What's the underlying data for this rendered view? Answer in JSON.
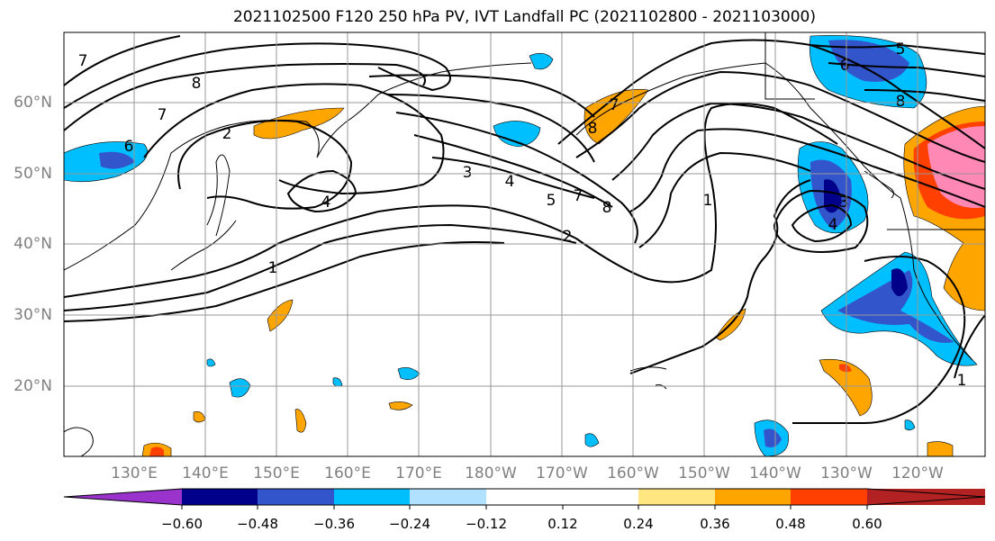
{
  "title": "2021102500 F120 250 hPa PV, IVT Landfall PC (2021102800 - 2021103000)",
  "lat_labels": [
    "60°N",
    "50°N",
    "40°N",
    "30°N",
    "20°N"
  ],
  "lon_labels": [
    "130°E",
    "140°E",
    "150°E",
    "160°E",
    "170°E",
    "180°W",
    "170°W",
    "160°W",
    "150°W",
    "140°W",
    "130°W",
    "120°W"
  ],
  "colorbar": {
    "colors": [
      "#9933cc",
      "#00008b",
      "#3355cc",
      "#00bfff",
      "#b0e2ff",
      "#ffffff",
      "#ffffff",
      "#ffe680",
      "#ffa500",
      "#ff4000",
      "#b22222",
      "#ff88b4"
    ],
    "ticks": [
      "−0.60",
      "−0.48",
      "−0.36",
      "−0.24",
      "−0.12",
      "0.12",
      "0.24",
      "0.36",
      "0.48",
      "0.60"
    ]
  },
  "contour_labels": [
    "7",
    "8",
    "7",
    "6",
    "2",
    "4",
    "1",
    "3",
    "4",
    "5",
    "7",
    "8",
    "2",
    "1",
    "3",
    "4",
    "5",
    "6",
    "8",
    "7",
    "8",
    "1"
  ]
}
